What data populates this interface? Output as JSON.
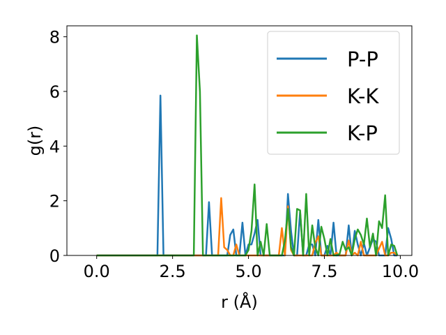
{
  "chart_data": {
    "type": "line",
    "title": "",
    "xlabel": "r (Å)",
    "ylabel": "g(r)",
    "xlim": [
      -0.98,
      10.38
    ],
    "ylim": [
      0,
      8.4
    ],
    "xticks": [
      0.0,
      2.5,
      5.0,
      7.5,
      10.0
    ],
    "xtick_labels": [
      "0.0",
      "2.5",
      "5.0",
      "7.5",
      "10.0"
    ],
    "yticks": [
      0,
      2,
      4,
      6,
      8
    ],
    "ytick_labels": [
      "0",
      "2",
      "4",
      "6",
      "8"
    ],
    "grid": false,
    "legend_position": "top-right",
    "series": [
      {
        "name": "P-P",
        "color": "#1f77b4",
        "x": [
          0.0,
          2.0,
          2.1,
          2.2,
          3.6,
          3.7,
          3.8,
          4.3,
          4.4,
          4.5,
          4.6,
          4.7,
          4.8,
          4.9,
          5.0,
          5.1,
          5.2,
          5.3,
          5.4,
          6.2,
          6.3,
          6.4,
          6.5,
          6.6,
          6.7,
          6.8,
          6.9,
          7.0,
          7.1,
          7.2,
          7.3,
          7.4,
          7.5,
          7.6,
          7.7,
          7.8,
          7.9,
          8.0,
          8.1,
          8.2,
          8.3,
          8.4,
          8.5,
          8.6,
          8.7,
          8.8,
          8.9,
          9.0,
          9.1,
          9.2,
          9.3,
          9.4,
          9.5,
          9.6,
          9.7,
          9.8,
          9.9
        ],
        "y": [
          0,
          0,
          5.85,
          0,
          0,
          1.95,
          0,
          0,
          0.75,
          0.95,
          0,
          0,
          1.2,
          0,
          0.4,
          0.4,
          0.8,
          1.3,
          0,
          0,
          2.25,
          0.9,
          0,
          0,
          1.6,
          0,
          0,
          0.4,
          0.4,
          0,
          1.3,
          0,
          0,
          0.35,
          0,
          1.2,
          0,
          0,
          0,
          0,
          1.1,
          0,
          0.9,
          0.4,
          0,
          0.45,
          0,
          0.3,
          0.6,
          0.5,
          0,
          0,
          0,
          1.0,
          0.6,
          0,
          0
        ]
      },
      {
        "name": "K-K",
        "color": "#ff7f0e",
        "x": [
          0.0,
          4.0,
          4.1,
          4.2,
          4.3,
          4.4,
          4.5,
          4.6,
          4.7,
          4.8,
          6.0,
          6.1,
          6.2,
          6.3,
          6.4,
          6.5,
          7.1,
          7.2,
          7.3,
          7.4,
          7.5,
          7.8,
          7.9,
          8.0,
          8.1,
          8.2,
          8.3,
          8.4,
          8.5,
          8.6,
          8.7,
          8.8,
          8.9,
          9.2,
          9.3,
          9.4,
          9.5,
          9.6,
          9.7,
          9.8,
          9.9
        ],
        "y": [
          0,
          0,
          2.1,
          0.3,
          0.2,
          0,
          0,
          0.4,
          0,
          0,
          0,
          1.0,
          0,
          1.8,
          0.2,
          0,
          0,
          0.45,
          0.7,
          0,
          0,
          0,
          0.1,
          0,
          0,
          0,
          0.55,
          0,
          0.1,
          0,
          0.5,
          0,
          0,
          0,
          0.25,
          0.5,
          0,
          0,
          0.1,
          0.1,
          0
        ]
      },
      {
        "name": "K-P",
        "color": "#2ca02c",
        "x": [
          0.0,
          3.2,
          3.3,
          3.4,
          3.5,
          4.9,
          5.0,
          5.1,
          5.2,
          5.3,
          5.4,
          5.5,
          5.6,
          5.7,
          6.1,
          6.2,
          6.3,
          6.4,
          6.5,
          6.6,
          6.7,
          6.8,
          6.9,
          7.0,
          7.1,
          7.2,
          7.3,
          7.4,
          7.5,
          7.6,
          7.7,
          7.8,
          7.9,
          8.0,
          8.1,
          8.2,
          8.3,
          8.4,
          8.5,
          8.6,
          8.7,
          8.8,
          8.9,
          9.0,
          9.1,
          9.2,
          9.3,
          9.4,
          9.5,
          9.6,
          9.7,
          9.8,
          9.9
        ],
        "y": [
          0,
          0,
          8.05,
          6.0,
          0,
          0,
          0.2,
          0.9,
          2.6,
          0,
          0.5,
          0,
          1.15,
          0,
          0,
          0.55,
          1.7,
          0.3,
          0,
          1.7,
          1.65,
          0,
          2.25,
          0,
          1.1,
          0.3,
          0,
          1.05,
          0.6,
          0,
          0.6,
          0,
          0,
          0.05,
          0.5,
          0.2,
          0.3,
          0,
          0.6,
          0.95,
          0.75,
          0.4,
          1.35,
          0.3,
          0.8,
          0,
          1.25,
          1.0,
          2.2,
          0,
          0.4,
          0.35,
          0
        ]
      }
    ]
  }
}
